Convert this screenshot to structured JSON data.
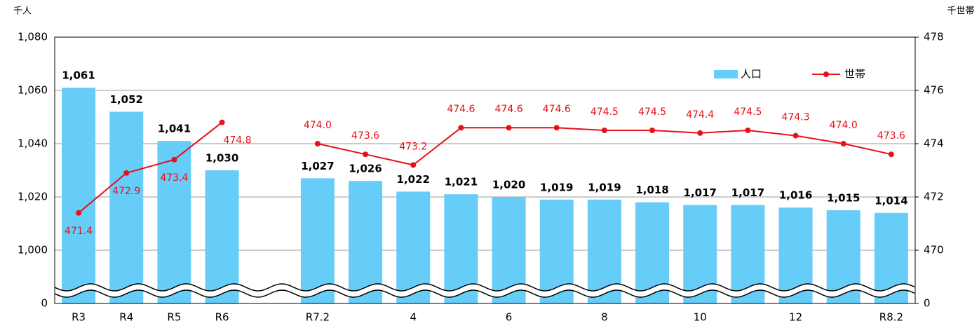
{
  "chart_data": {
    "type": "bar_line",
    "y_unit": "千人",
    "y2_unit": "千世帯",
    "categories": [
      "R3",
      "R4",
      "R5",
      "R6",
      null,
      "R7.2",
      null,
      "4",
      null,
      "6",
      null,
      "8",
      null,
      "10",
      null,
      "12",
      null,
      "R8.2"
    ],
    "series": [
      {
        "name": "人口",
        "type": "bar",
        "color": "#66ccf8",
        "axis": "y",
        "values": [
          1061,
          1052,
          1041,
          1030,
          null,
          1027,
          1026,
          1022,
          1021,
          1020,
          1019,
          1019,
          1018,
          1017,
          1017,
          1016,
          1015,
          1014
        ],
        "value_labels": [
          "1,061",
          "1,052",
          "1,041",
          "1,030",
          null,
          "1,027",
          "1,026",
          "1,022",
          "1,021",
          "1,020",
          "1,019",
          "1,019",
          "1,018",
          "1,017",
          "1,017",
          "1,016",
          "1,015",
          "1,014"
        ]
      },
      {
        "name": "世帯",
        "type": "line",
        "color": "#e8101a",
        "axis": "y2",
        "values": [
          471.4,
          472.9,
          473.4,
          474.8,
          null,
          474.0,
          473.6,
          473.2,
          474.6,
          474.6,
          474.6,
          474.5,
          474.5,
          474.4,
          474.5,
          474.3,
          474.0,
          473.6
        ],
        "value_labels": [
          "471.4",
          "472.9",
          "473.4",
          "474.8",
          null,
          "474.0",
          "473.6",
          "473.2",
          "474.6",
          "474.6",
          "474.6",
          "474.5",
          "474.5",
          "474.4",
          "474.5",
          "474.3",
          "474.0",
          "473.6"
        ]
      }
    ],
    "ylim": [
      0,
      1080
    ],
    "yticks": [
      0,
      {
        "value": 1000,
        "label": "1,000"
      },
      {
        "value": 1020,
        "label": "1,020"
      },
      {
        "value": 1040,
        "label": "1,040"
      },
      {
        "value": 1060,
        "label": "1,060"
      },
      {
        "value": 1080,
        "label": "1,080"
      }
    ],
    "y_break": [
      0,
      1000
    ],
    "y2lim": [
      0,
      478
    ],
    "y2ticks": [
      0,
      470,
      472,
      474,
      476,
      478
    ],
    "y2_break": [
      0,
      470
    ],
    "grid": true,
    "legend": "upper right"
  }
}
